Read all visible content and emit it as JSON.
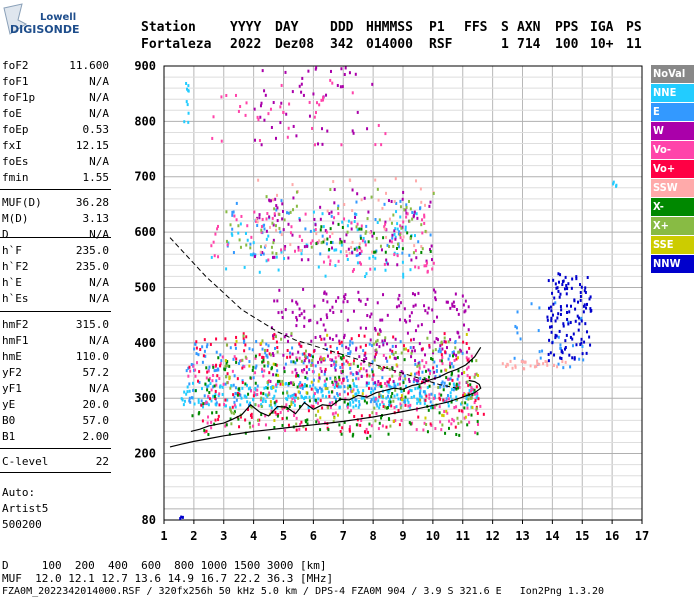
{
  "logo": {
    "line1": "Lowell",
    "line2": "DIGISONDE"
  },
  "header": {
    "labels": [
      "Station",
      "YYYY",
      "DAY",
      "DDD",
      "HHMMSS",
      "P1",
      "FFS",
      "S",
      "AXN",
      "PPS",
      "IGA",
      "PS"
    ],
    "values": [
      "Fortaleza",
      "2022",
      "Dez08",
      "342",
      "014000",
      "RSF",
      "",
      "1",
      "714",
      "100",
      "10+",
      "11"
    ]
  },
  "params": [
    {
      "label": "foF2",
      "value": "11.600"
    },
    {
      "label": "foF1",
      "value": "N/A"
    },
    {
      "label": "foF1p",
      "value": "N/A"
    },
    {
      "label": "foE",
      "value": "N/A"
    },
    {
      "label": "foEp",
      "value": "0.53"
    },
    {
      "label": "fxI",
      "value": "12.15"
    },
    {
      "label": "foEs",
      "value": "N/A"
    },
    {
      "label": "fmin",
      "value": "1.55"
    },
    {
      "label": "MUF(D)",
      "value": "36.28"
    },
    {
      "label": "M(D)",
      "value": "3.13"
    },
    {
      "label": "D",
      "value": "N/A"
    },
    {
      "label": "h`F",
      "value": "235.0"
    },
    {
      "label": "h`F2",
      "value": "235.0"
    },
    {
      "label": "h`E",
      "value": "N/A"
    },
    {
      "label": "h`Es",
      "value": "N/A"
    },
    {
      "label": "hmF2",
      "value": "315.0"
    },
    {
      "label": "hmF1",
      "value": "N/A"
    },
    {
      "label": "hmE",
      "value": "110.0"
    },
    {
      "label": "yF2",
      "value": "57.2"
    },
    {
      "label": "yF1",
      "value": "N/A"
    },
    {
      "label": "yE",
      "value": "20.0"
    },
    {
      "label": "B0",
      "value": "57.0"
    },
    {
      "label": "B1",
      "value": "2.00"
    },
    {
      "label": "C-level",
      "value": "22"
    }
  ],
  "auto": {
    "line1": "Auto:",
    "line2": "Artist5",
    "line3": "500200"
  },
  "legend": [
    {
      "label": "NoVal",
      "color": "#888888"
    },
    {
      "label": "NNE",
      "color": "#22ccff"
    },
    {
      "label": "E",
      "color": "#3399ff"
    },
    {
      "label": "W",
      "color": "#aa00aa"
    },
    {
      "label": "Vo-",
      "color": "#ff44aa"
    },
    {
      "label": "Vo+",
      "color": "#ff0044"
    },
    {
      "label": "SSW",
      "color": "#ffaaaa"
    },
    {
      "label": "X-",
      "color": "#008800"
    },
    {
      "label": "X+",
      "color": "#88bb44"
    },
    {
      "label": "SSE",
      "color": "#cccc00"
    },
    {
      "label": "NNW",
      "color": "#0000cc"
    }
  ],
  "footer": {
    "line1": "D     100  200  400  600  800 1000 1500 3000 [km]",
    "line2": "MUF  12.0 12.1 12.7 13.6 14.9 16.7 22.2 36.3 [MHz]",
    "line3": "FZA0M_2022342014000.RSF / 320fx256h 50 kHz 5.0 km / DPS-4 FZA0M 904 / 3.9 S 321.6 E   Ion2Png 1.3.20"
  },
  "chart_data": {
    "type": "scatter",
    "title": "",
    "xlabel": "",
    "ylabel": "",
    "xlim": [
      1,
      17
    ],
    "ylim": [
      80,
      900
    ],
    "x_ticks": [
      1,
      2,
      3,
      4,
      5,
      6,
      7,
      8,
      9,
      10,
      11,
      12,
      13,
      14,
      15,
      16,
      17
    ],
    "y_ticks": [
      80,
      200,
      300,
      400,
      500,
      600,
      700,
      800,
      900
    ],
    "grid": true,
    "legend_position": "right",
    "series": [
      {
        "name": "NNE",
        "color": "#22ccff",
        "regions": [
          {
            "x": [
              1.5,
              11.5
            ],
            "y": [
              285,
              330
            ],
            "count": 260
          },
          {
            "x": [
              2.5,
              9.5
            ],
            "y": [
              520,
              640
            ],
            "count": 80
          },
          {
            "x": [
              1.6,
              1.8
            ],
            "y": [
              800,
              880
            ],
            "count": 10
          },
          {
            "x": [
              16.0,
              16.2
            ],
            "y": [
              685,
              695
            ],
            "count": 4
          }
        ]
      },
      {
        "name": "E",
        "color": "#3399ff",
        "regions": [
          {
            "x": [
              1.7,
              11.0
            ],
            "y": [
              290,
              410
            ],
            "count": 240
          },
          {
            "x": [
              3.0,
              10.0
            ],
            "y": [
              560,
              660
            ],
            "count": 60
          },
          {
            "x": [
              12.5,
              15.0
            ],
            "y": [
              350,
              480
            ],
            "count": 30
          }
        ]
      },
      {
        "name": "W",
        "color": "#aa00aa",
        "regions": [
          {
            "x": [
              4.5,
              11.2
            ],
            "y": [
              330,
              500
            ],
            "count": 260
          },
          {
            "x": [
              4.0,
              10.0
            ],
            "y": [
              540,
              680
            ],
            "count": 90
          },
          {
            "x": [
              4.0,
              8.0
            ],
            "y": [
              760,
              900
            ],
            "count": 50
          }
        ]
      },
      {
        "name": "Vo-",
        "color": "#ff44aa",
        "regions": [
          {
            "x": [
              1.7,
              11.6
            ],
            "y": [
              240,
              380
            ],
            "count": 220
          },
          {
            "x": [
              2.5,
              10.0
            ],
            "y": [
              530,
              640
            ],
            "count": 90
          },
          {
            "x": [
              2.5,
              8.5
            ],
            "y": [
              760,
              880
            ],
            "count": 40
          }
        ]
      },
      {
        "name": "Vo+",
        "color": "#ff0044",
        "regions": [
          {
            "x": [
              1.8,
              11.7
            ],
            "y": [
              240,
              420
            ],
            "count": 200
          }
        ]
      },
      {
        "name": "SSW",
        "color": "#ffaaaa",
        "regions": [
          {
            "x": [
              12.3,
              14.5
            ],
            "y": [
              355,
              370
            ],
            "count": 30
          },
          {
            "x": [
              3.5,
              10.0
            ],
            "y": [
              560,
              700
            ],
            "count": 50
          }
        ]
      },
      {
        "name": "X-",
        "color": "#008800",
        "regions": [
          {
            "x": [
              1.9,
              11.5
            ],
            "y": [
              230,
              380
            ],
            "count": 180
          },
          {
            "x": [
              6.0,
              10.0
            ],
            "y": [
              560,
              620
            ],
            "count": 30
          }
        ]
      },
      {
        "name": "X+",
        "color": "#88bb44",
        "regions": [
          {
            "x": [
              3.0,
              11.5
            ],
            "y": [
              250,
              420
            ],
            "count": 120
          },
          {
            "x": [
              3.0,
              10.0
            ],
            "y": [
              560,
              680
            ],
            "count": 60
          }
        ]
      },
      {
        "name": "SSE",
        "color": "#cccc00",
        "regions": [
          {
            "x": [
              3.0,
              11.5
            ],
            "y": [
              260,
              420
            ],
            "count": 50
          }
        ]
      },
      {
        "name": "NNW",
        "color": "#0000cc",
        "regions": [
          {
            "x": [
              13.8,
              15.3
            ],
            "y": [
              370,
              530
            ],
            "count": 120
          },
          {
            "x": [
              1.5,
              1.6
            ],
            "y": [
              85,
              90
            ],
            "count": 3
          }
        ]
      }
    ],
    "trace": {
      "x": [
        1.9,
        2.2,
        2.5,
        2.8,
        3.0,
        3.3,
        3.6,
        3.9,
        4.2,
        4.5,
        4.8,
        5.1,
        5.4,
        5.7,
        6.0,
        6.3,
        6.6,
        6.9,
        7.2,
        7.5,
        7.8,
        8.1,
        8.4,
        8.7,
        9.0,
        9.3,
        9.6,
        9.9,
        10.2,
        10.5,
        10.8,
        11.1,
        11.4,
        11.6
      ],
      "y": [
        240,
        244,
        250,
        253,
        255,
        262,
        270,
        288,
        275,
        268,
        285,
        284,
        272,
        292,
        280,
        288,
        286,
        298,
        297,
        305,
        302,
        310,
        314,
        318,
        316,
        323,
        326,
        333,
        338,
        346,
        352,
        360,
        375,
        392
      ]
    },
    "fitted_profile": {
      "x": [
        1.2,
        1.6,
        2.0,
        2.5,
        3.0,
        3.5,
        4.0,
        4.5,
        5.0,
        5.5,
        6.0,
        6.5,
        7.0,
        7.5,
        8.0,
        8.5,
        9.0,
        9.5,
        10.0,
        10.5,
        11.0,
        11.4,
        11.6,
        11.55,
        11.4,
        11.2
      ],
      "y": [
        212,
        217,
        222,
        227,
        232,
        236,
        240,
        243,
        246,
        249,
        252,
        255,
        258,
        262,
        266,
        271,
        276,
        281,
        287,
        293,
        302,
        310,
        318,
        325,
        330,
        332
      ]
    },
    "dashed_profile": {
      "x": [
        1.2,
        1.8,
        2.4,
        3.0,
        3.6,
        4.2,
        4.8,
        5.4,
        6.0,
        6.6,
        7.2,
        7.8,
        8.4,
        9.0,
        9.6,
        10.2,
        10.8
      ],
      "y": [
        590,
        555,
        520,
        490,
        460,
        440,
        420,
        405,
        395,
        385,
        375,
        365,
        355,
        345,
        335,
        325,
        318
      ]
    }
  }
}
